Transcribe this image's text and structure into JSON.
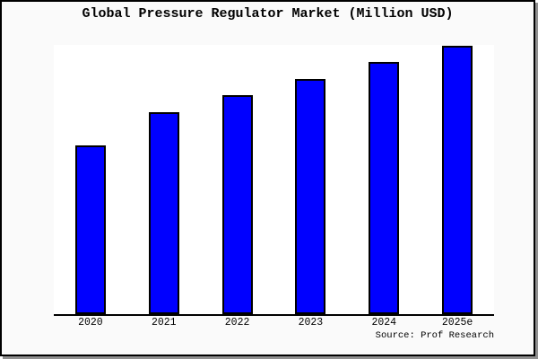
{
  "figure": {
    "title": "Global Pressure Regulator Market (Million USD)",
    "source": "Source: Prof Research"
  },
  "chart_data": {
    "type": "bar",
    "title": "Global Pressure Regulator Market (Million USD)",
    "categories": [
      "2020",
      "2021",
      "2022",
      "2023",
      "2024",
      "2025e"
    ],
    "values_relative_pct_of_axis_max": [
      62.7,
      75.0,
      81.3,
      87.5,
      93.8,
      99.8
    ],
    "value_axis_note": "no y-axis ticks, gridlines or value labels shown; values are relative bar heights with axis max = 100",
    "xlabel": "",
    "ylabel": "",
    "legend": "none",
    "grid": false,
    "bar_color": "#0000ff",
    "bar_border_color": "#000000",
    "plot_bg": "#ffffff",
    "fig_bg": "#fafafa",
    "frame_border_color": "#000000",
    "source": "Source: Prof Research"
  }
}
